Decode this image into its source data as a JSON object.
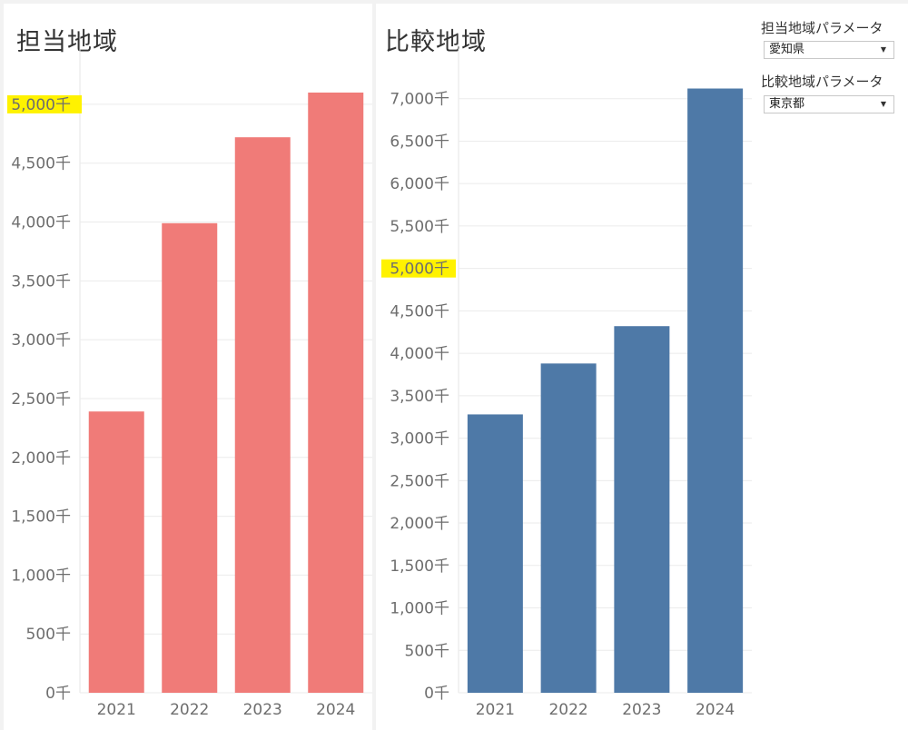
{
  "colors": {
    "left_bar": "#f07b78",
    "right_bar": "#4e79a7",
    "highlight": "#fff200",
    "grid": "#ebebeb",
    "tick_text": "#6e6e6e"
  },
  "parameters": [
    {
      "label": "担当地域パラメータ",
      "value": "愛知県"
    },
    {
      "label": "比較地域パラメータ",
      "value": "東京都"
    }
  ],
  "chart_data": [
    {
      "type": "bar",
      "title": "担当地域",
      "categories": [
        "2021",
        "2022",
        "2023",
        "2024"
      ],
      "values": [
        2390,
        3990,
        4720,
        5100
      ],
      "ylim": [
        0,
        5300
      ],
      "yticks": [
        0,
        500,
        1000,
        1500,
        2000,
        2500,
        3000,
        3500,
        4000,
        4500,
        5000
      ],
      "tick_suffix": "千",
      "highlighted_tick": 5000,
      "grid": true
    },
    {
      "type": "bar",
      "title": "比較地域",
      "categories": [
        "2021",
        "2022",
        "2023",
        "2024"
      ],
      "values": [
        3280,
        3880,
        4320,
        7120
      ],
      "ylim": [
        0,
        7350
      ],
      "yticks": [
        0,
        500,
        1000,
        1500,
        2000,
        2500,
        3000,
        3500,
        4000,
        4500,
        5000,
        5500,
        6000,
        6500,
        7000
      ],
      "tick_suffix": "千",
      "highlighted_tick": 5000,
      "grid": true
    }
  ]
}
